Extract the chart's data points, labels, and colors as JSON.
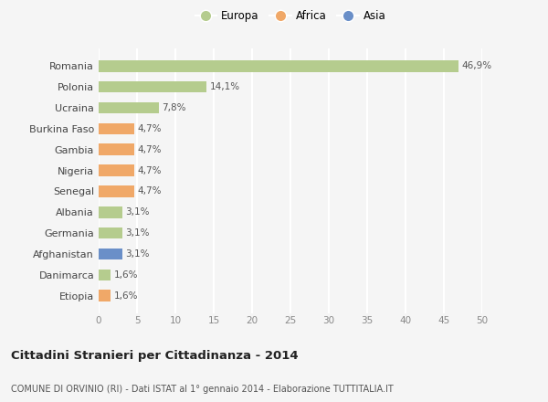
{
  "categories": [
    "Romania",
    "Polonia",
    "Ucraina",
    "Burkina Faso",
    "Gambia",
    "Nigeria",
    "Senegal",
    "Albania",
    "Germania",
    "Afghanistan",
    "Danimarca",
    "Etiopia"
  ],
  "values": [
    46.9,
    14.1,
    7.8,
    4.7,
    4.7,
    4.7,
    4.7,
    3.1,
    3.1,
    3.1,
    1.6,
    1.6
  ],
  "labels": [
    "46,9%",
    "14,1%",
    "7,8%",
    "4,7%",
    "4,7%",
    "4,7%",
    "4,7%",
    "3,1%",
    "3,1%",
    "3,1%",
    "1,6%",
    "1,6%"
  ],
  "continents": [
    "Europa",
    "Europa",
    "Europa",
    "Africa",
    "Africa",
    "Africa",
    "Africa",
    "Europa",
    "Europa",
    "Asia",
    "Europa",
    "Africa"
  ],
  "colors": {
    "Europa": "#b5cc8e",
    "Africa": "#f0a868",
    "Asia": "#6a8fc8"
  },
  "title": "Cittadini Stranieri per Cittadinanza - 2014",
  "subtitle": "COMUNE DI ORVINIO (RI) - Dati ISTAT al 1° gennaio 2014 - Elaborazione TUTTITALIA.IT",
  "xlim": [
    0,
    50
  ],
  "xticks": [
    0,
    5,
    10,
    15,
    20,
    25,
    30,
    35,
    40,
    45,
    50
  ],
  "background_color": "#f5f5f5",
  "grid_color": "#ffffff",
  "bar_height": 0.55
}
